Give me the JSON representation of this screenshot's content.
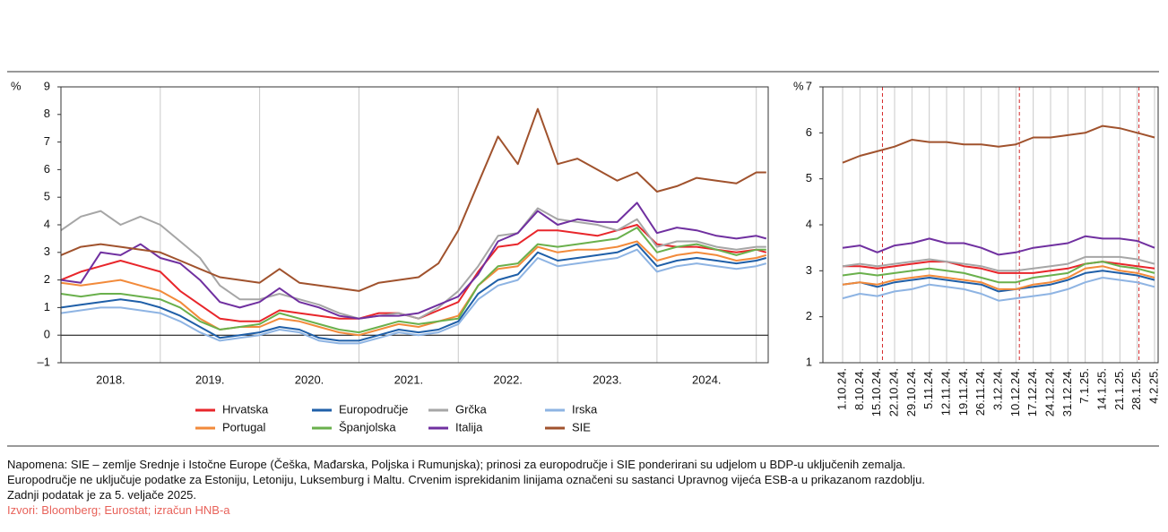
{
  "chart_data": [
    {
      "type": "line",
      "unit": "%",
      "x": [
        2018.0,
        2018.2,
        2018.4,
        2018.6,
        2018.8,
        2019.0,
        2019.2,
        2019.4,
        2019.6,
        2019.8,
        2020.0,
        2020.2,
        2020.4,
        2020.6,
        2020.8,
        2021.0,
        2021.2,
        2021.4,
        2021.6,
        2021.8,
        2022.0,
        2022.2,
        2022.4,
        2022.6,
        2022.8,
        2023.0,
        2023.2,
        2023.4,
        2023.6,
        2023.8,
        2024.0,
        2024.2,
        2024.4,
        2024.6,
        2024.8,
        2025.0,
        2025.1
      ],
      "xlim": [
        2018.0,
        2025.12
      ],
      "xticks": [
        {
          "value": 2018.5,
          "label": "2018."
        },
        {
          "value": 2019.5,
          "label": "2019."
        },
        {
          "value": 2020.5,
          "label": "2020."
        },
        {
          "value": 2021.5,
          "label": "2021."
        },
        {
          "value": 2022.5,
          "label": "2022."
        },
        {
          "value": 2023.5,
          "label": "2023."
        },
        {
          "value": 2024.5,
          "label": "2024."
        }
      ],
      "xgrid": [
        2019,
        2020,
        2021,
        2022,
        2023,
        2024,
        2025
      ],
      "ylim": [
        -1,
        9
      ],
      "yticks": [
        {
          "value": -1,
          "label": "–1"
        },
        0,
        1,
        2,
        3,
        4,
        5,
        6,
        7,
        8,
        9
      ],
      "zero_line": true,
      "series": [
        {
          "name": "Hrvatska",
          "color": "#e8262b",
          "values": [
            2.0,
            2.3,
            2.5,
            2.7,
            2.5,
            2.3,
            1.6,
            1.1,
            0.6,
            0.5,
            0.5,
            0.9,
            0.8,
            0.7,
            0.6,
            0.6,
            0.8,
            0.8,
            0.6,
            0.9,
            1.2,
            2.3,
            3.2,
            3.3,
            3.8,
            3.8,
            3.7,
            3.6,
            3.8,
            4.0,
            3.3,
            3.2,
            3.2,
            3.1,
            3.0,
            3.1,
            3.0
          ]
        },
        {
          "name": "Europodručje",
          "color": "#1f5fa8",
          "values": [
            1.0,
            1.1,
            1.2,
            1.3,
            1.2,
            1.0,
            0.7,
            0.3,
            -0.1,
            0.0,
            0.1,
            0.3,
            0.2,
            -0.1,
            -0.2,
            -0.2,
            0.0,
            0.2,
            0.1,
            0.2,
            0.5,
            1.5,
            2.0,
            2.2,
            3.0,
            2.7,
            2.8,
            2.9,
            3.0,
            3.3,
            2.5,
            2.7,
            2.8,
            2.7,
            2.6,
            2.7,
            2.8
          ]
        },
        {
          "name": "Grčka",
          "color": "#a6a6a6",
          "values": [
            3.8,
            4.3,
            4.5,
            4.0,
            4.3,
            4.0,
            3.4,
            2.8,
            1.8,
            1.3,
            1.3,
            1.5,
            1.3,
            1.1,
            0.8,
            0.6,
            0.7,
            0.8,
            0.6,
            1.0,
            1.6,
            2.5,
            3.6,
            3.7,
            4.6,
            4.2,
            4.1,
            4.0,
            3.8,
            4.2,
            3.2,
            3.4,
            3.4,
            3.2,
            3.1,
            3.2,
            3.2
          ]
        },
        {
          "name": "Irska",
          "color": "#8eb4e3",
          "values": [
            0.8,
            0.9,
            1.0,
            1.0,
            0.9,
            0.8,
            0.5,
            0.1,
            -0.2,
            -0.1,
            0.0,
            0.2,
            0.1,
            -0.2,
            -0.3,
            -0.3,
            -0.1,
            0.1,
            0.0,
            0.1,
            0.4,
            1.3,
            1.8,
            2.0,
            2.8,
            2.5,
            2.6,
            2.7,
            2.8,
            3.1,
            2.3,
            2.5,
            2.6,
            2.5,
            2.4,
            2.5,
            2.6
          ]
        },
        {
          "name": "Portugal",
          "color": "#f28a3a",
          "values": [
            1.9,
            1.8,
            1.9,
            2.0,
            1.8,
            1.6,
            1.2,
            0.6,
            0.2,
            0.3,
            0.3,
            0.6,
            0.5,
            0.3,
            0.1,
            0.0,
            0.2,
            0.4,
            0.3,
            0.5,
            0.7,
            1.8,
            2.4,
            2.5,
            3.2,
            3.0,
            3.1,
            3.1,
            3.2,
            3.4,
            2.7,
            2.9,
            3.0,
            2.9,
            2.7,
            2.8,
            2.9
          ]
        },
        {
          "name": "Španjolska",
          "color": "#6ab04c",
          "values": [
            1.5,
            1.4,
            1.5,
            1.5,
            1.4,
            1.3,
            1.0,
            0.5,
            0.2,
            0.3,
            0.4,
            0.8,
            0.6,
            0.4,
            0.2,
            0.1,
            0.3,
            0.5,
            0.4,
            0.5,
            0.6,
            1.8,
            2.5,
            2.6,
            3.3,
            3.2,
            3.3,
            3.4,
            3.5,
            3.9,
            3.0,
            3.2,
            3.3,
            3.1,
            2.9,
            3.1,
            3.1
          ]
        },
        {
          "name": "Italija",
          "color": "#7030a0",
          "values": [
            2.0,
            1.9,
            3.0,
            2.9,
            3.3,
            2.8,
            2.6,
            2.0,
            1.2,
            1.0,
            1.2,
            1.7,
            1.2,
            1.0,
            0.7,
            0.6,
            0.7,
            0.7,
            0.8,
            1.1,
            1.4,
            2.2,
            3.4,
            3.7,
            4.5,
            4.0,
            4.2,
            4.1,
            4.1,
            4.8,
            3.7,
            3.9,
            3.8,
            3.6,
            3.5,
            3.6,
            3.5
          ]
        },
        {
          "name": "SIE",
          "color": "#a0522d",
          "values": [
            2.9,
            3.2,
            3.3,
            3.2,
            3.1,
            3.0,
            2.7,
            2.4,
            2.1,
            2.0,
            1.9,
            2.4,
            1.9,
            1.8,
            1.7,
            1.6,
            1.9,
            2.0,
            2.1,
            2.6,
            3.8,
            5.5,
            7.2,
            6.2,
            8.2,
            6.2,
            6.4,
            6.0,
            5.6,
            5.9,
            5.2,
            5.4,
            5.7,
            5.6,
            5.5,
            5.9,
            5.9
          ]
        }
      ]
    },
    {
      "type": "line",
      "unit": "%",
      "categories": [
        "1.10.24.",
        "8.10.24.",
        "15.10.24.",
        "22.10.24.",
        "29.10.24.",
        "5.11.24.",
        "12.11.24.",
        "19.11.24.",
        "26.11.24.",
        "3.12.24.",
        "10.12.24.",
        "17.12.24.",
        "24.12.24.",
        "31.12.24.",
        "7.1.25.",
        "14.1.25.",
        "21.1.25.",
        "28.1.25.",
        "4.2.25."
      ],
      "ylim": [
        1,
        7
      ],
      "yticks": [
        1,
        2,
        3,
        4,
        5,
        6,
        7
      ],
      "meeting_lines": [
        2.3,
        10.2,
        17.1
      ],
      "series": [
        {
          "name": "Hrvatska",
          "color": "#e8262b",
          "values": [
            3.1,
            3.1,
            3.05,
            3.1,
            3.15,
            3.2,
            3.2,
            3.1,
            3.05,
            2.95,
            2.95,
            2.95,
            3.0,
            3.05,
            3.15,
            3.2,
            3.15,
            3.1,
            3.05
          ]
        },
        {
          "name": "Europodručje",
          "color": "#1f5fa8",
          "values": [
            2.7,
            2.75,
            2.65,
            2.75,
            2.8,
            2.85,
            2.8,
            2.75,
            2.7,
            2.55,
            2.6,
            2.65,
            2.7,
            2.8,
            2.95,
            3.0,
            2.95,
            2.9,
            2.8
          ]
        },
        {
          "name": "Grčka",
          "color": "#a6a6a6",
          "values": [
            3.1,
            3.15,
            3.1,
            3.15,
            3.2,
            3.25,
            3.2,
            3.15,
            3.1,
            3.0,
            3.0,
            3.05,
            3.1,
            3.15,
            3.3,
            3.3,
            3.3,
            3.25,
            3.15
          ]
        },
        {
          "name": "Irska",
          "color": "#8eb4e3",
          "values": [
            2.4,
            2.5,
            2.45,
            2.55,
            2.6,
            2.7,
            2.65,
            2.6,
            2.5,
            2.35,
            2.4,
            2.45,
            2.5,
            2.6,
            2.75,
            2.85,
            2.8,
            2.75,
            2.65
          ]
        },
        {
          "name": "Portugal",
          "color": "#f28a3a",
          "values": [
            2.7,
            2.75,
            2.7,
            2.8,
            2.85,
            2.9,
            2.85,
            2.8,
            2.75,
            2.6,
            2.6,
            2.7,
            2.75,
            2.85,
            3.05,
            3.1,
            3.0,
            2.95,
            2.85
          ]
        },
        {
          "name": "Španjolska",
          "color": "#6ab04c",
          "values": [
            2.9,
            2.95,
            2.9,
            2.95,
            3.0,
            3.05,
            3.0,
            2.95,
            2.85,
            2.75,
            2.75,
            2.85,
            2.9,
            2.95,
            3.15,
            3.2,
            3.1,
            3.05,
            2.95
          ]
        },
        {
          "name": "Italija",
          "color": "#7030a0",
          "values": [
            3.5,
            3.55,
            3.4,
            3.55,
            3.6,
            3.7,
            3.6,
            3.6,
            3.5,
            3.35,
            3.4,
            3.5,
            3.55,
            3.6,
            3.75,
            3.7,
            3.7,
            3.65,
            3.5
          ]
        },
        {
          "name": "SIE",
          "color": "#a0522d",
          "values": [
            5.35,
            5.5,
            5.6,
            5.7,
            5.85,
            5.8,
            5.8,
            5.75,
            5.75,
            5.7,
            5.75,
            5.9,
            5.9,
            5.95,
            6.0,
            6.15,
            6.1,
            6.0,
            5.9
          ]
        }
      ]
    }
  ],
  "notes": [
    "Napomena: SIE – zemlje Srednje i Istočne Europe (Češka, Mađarska, Poljska i Rumunjska); prinosi za europodručje i SIE ponderirani su udjelom u BDP-u uključenih zemalja.",
    "Europodručje ne uključuje podatke za Estoniju, Letoniju, Luksemburg i Maltu. Crvenim isprekidanim linijama označeni su sastanci Upravnog vijeća ESB-a u prikazanom razdoblju.",
    "Zadnji podatak je za 5. veljače 2025."
  ],
  "sources": "Izvori: Bloomberg; Eurostat; izračun HNB-a"
}
